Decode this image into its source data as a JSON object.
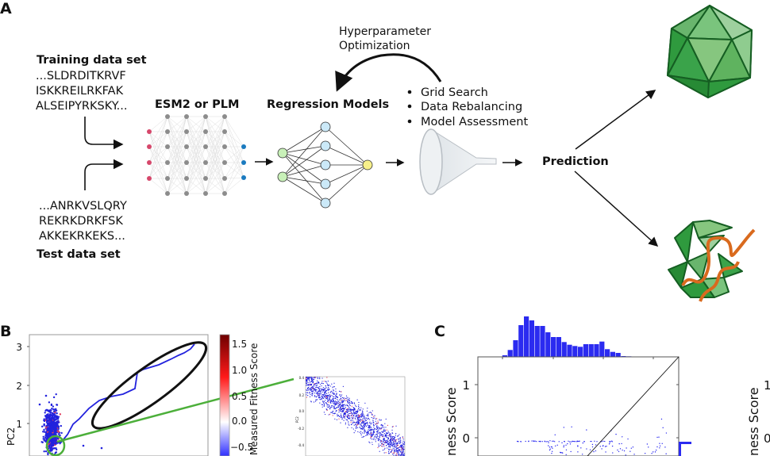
{
  "panel_a": {
    "label": "A",
    "training": {
      "title": "Training data set",
      "lines": [
        "...SLDRDITKRVF",
        "ISKKREILRKFAK",
        "ALSEIPYRKSKY..."
      ]
    },
    "test": {
      "title": "Test data set",
      "lines": [
        "...ANRKVSLQRY",
        "REKRKDRKFSK",
        "AKKEKRKEKS..."
      ]
    },
    "esm_label": "ESM2 or PLM",
    "regression_label": "Regression Models",
    "hyper_label": [
      "Hyperparameter",
      "Optimization"
    ],
    "bullets": [
      "Grid Search",
      "Data Rebalancing",
      "Model Assessment"
    ],
    "prediction_label": "Prediction",
    "colors": {
      "input_node": "#d6476b",
      "hidden_node": "#8c8c8c",
      "output_node": "#1a7abf",
      "reg_input": "#c8f0b8",
      "reg_hidden": "#cbe9f8",
      "reg_output": "#f7f08a",
      "capsid": "#3aa34a",
      "cargo": "#d96a1e"
    }
  },
  "panel_b": {
    "label": "B",
    "ylabel": "PC2",
    "yticks": [
      "3",
      "2",
      "1"
    ],
    "colorbar": {
      "label": "Measured Fitness Score",
      "ticks": [
        "1.5",
        "1.0",
        "0.5",
        "0.0",
        "−0.5"
      ],
      "colors": [
        "#6e0000",
        "#ff0000",
        "#ffffff",
        "#0000ff"
      ]
    },
    "inset": {
      "ylabel": "PC2",
      "yticks": [
        "0.4",
        "0.2",
        "0.0",
        "-0.2",
        "-0.4"
      ]
    },
    "highlight_color": "#4caf3a"
  },
  "panel_c": {
    "label": "C",
    "ylabel": "ness Score",
    "yticks": [
      "1",
      "0"
    ],
    "right_ylabel": "ness Score",
    "right_yticks": [
      "1",
      "0"
    ],
    "histogram_relative_heights": [
      0.3,
      2,
      8.7,
      21,
      40,
      51,
      46,
      39,
      39,
      31,
      25,
      25,
      18.7,
      15.3,
      13.7,
      12.7,
      16,
      16,
      16,
      19.3,
      9.7,
      6.3,
      5,
      1,
      0.7,
      0.3
    ],
    "color": "#2b2bf0"
  }
}
